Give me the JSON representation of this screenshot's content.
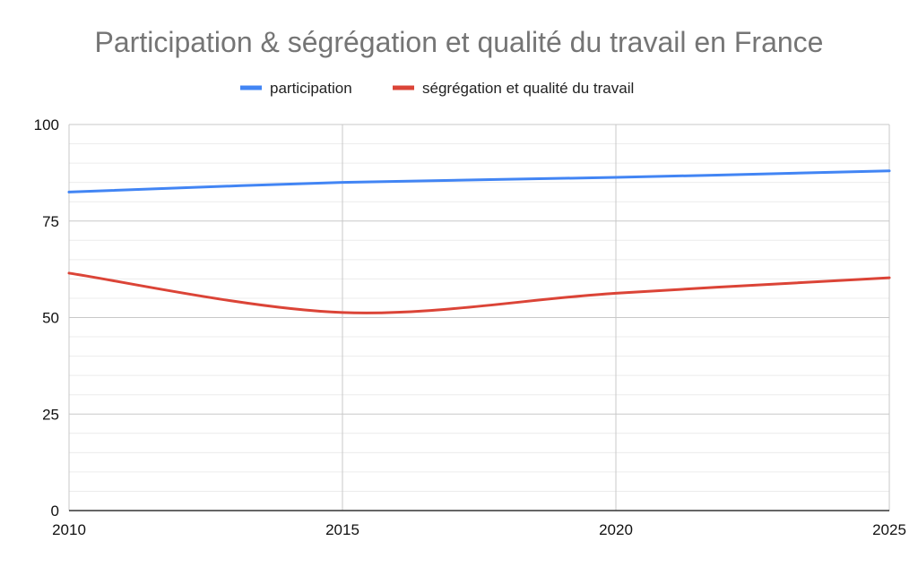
{
  "chart_data": {
    "type": "line",
    "title": "Participation & ségrégation et qualité du travail en France",
    "xlabel": "",
    "ylabel": "",
    "x": [
      2010,
      2015,
      2020,
      2025
    ],
    "xlim": [
      2010,
      2025
    ],
    "ylim": [
      0,
      100
    ],
    "y_ticks": [
      0,
      25,
      50,
      75,
      100
    ],
    "x_ticks": [
      2010,
      2015,
      2020,
      2025
    ],
    "y_tick_labels": [
      "0",
      "25",
      "50",
      "75",
      "100"
    ],
    "x_tick_labels": [
      "2010",
      "2015",
      "2020",
      "2025"
    ],
    "grid": true,
    "legend_position": "top-center",
    "series": [
      {
        "name": "participation",
        "color": "#4285f4",
        "values": [
          82.5,
          85,
          86.3,
          88
        ]
      },
      {
        "name": "ségrégation et qualité du travail",
        "color": "#db4437",
        "values": [
          61.5,
          51.3,
          56.3,
          60.3
        ]
      }
    ]
  }
}
